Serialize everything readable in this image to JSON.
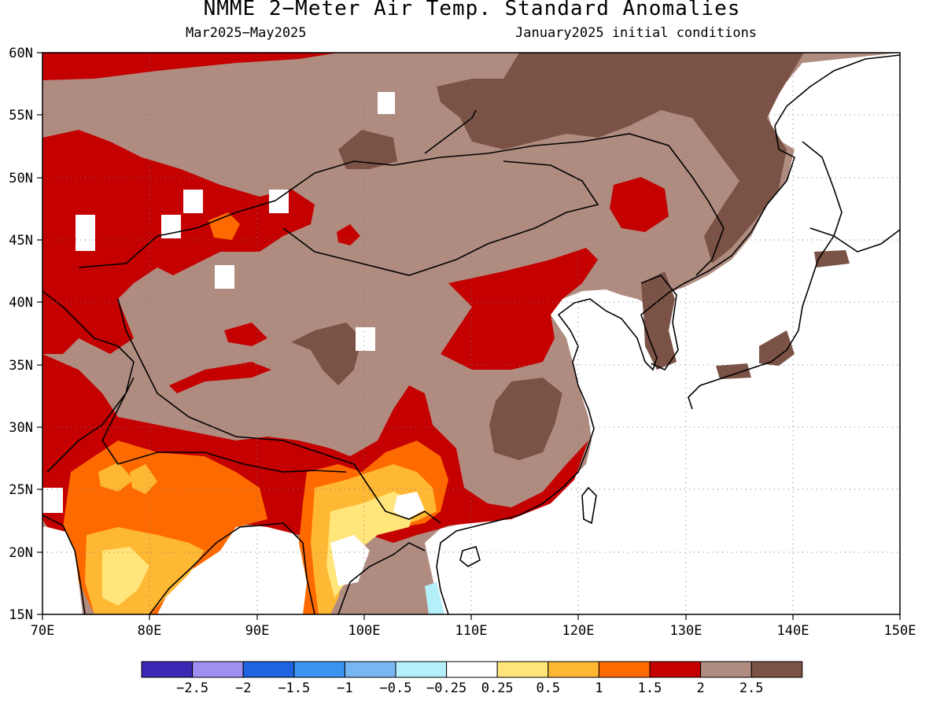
{
  "title": "NMME 2−Meter Air Temp. Standard Anomalies",
  "subtitle_left": "Mar2025−May2025",
  "subtitle_right": "January2025 initial conditions",
  "map": {
    "lon_range": [
      70,
      150
    ],
    "lat_range": [
      15,
      60
    ],
    "lat_labels": [
      "15N",
      "20N",
      "25N",
      "30N",
      "35N",
      "40N",
      "45N",
      "50N",
      "55N",
      "60N"
    ],
    "lon_labels": [
      "70E",
      "80E",
      "90E",
      "100E",
      "110E",
      "120E",
      "130E",
      "140E",
      "150E"
    ]
  },
  "colorbar": {
    "colors": [
      "#3b28b5",
      "#9f8ff0",
      "#1e63e0",
      "#3c93f0",
      "#78b6f2",
      "#b4f0fa",
      "#ffffff",
      "#ffe57a",
      "#ffb833",
      "#ff6a00",
      "#c40000",
      "#b08c80",
      "#7a5246"
    ],
    "labels": [
      "−2.5",
      "−2",
      "−1.5",
      "−1",
      "−0.5",
      "−0.25",
      "0.25",
      "0.5",
      "1",
      "1.5",
      "2",
      "2.5"
    ]
  }
}
